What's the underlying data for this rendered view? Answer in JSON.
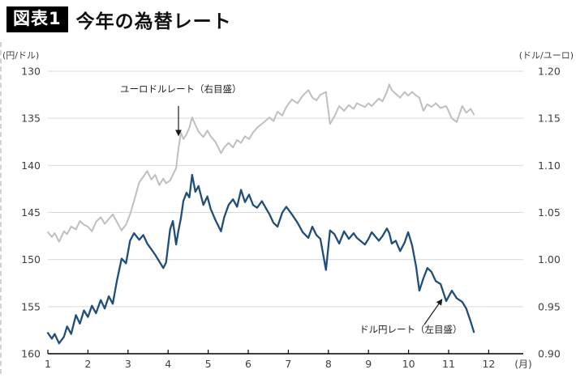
{
  "header": {
    "badge_label": "図表1",
    "title": "今年の為替レート"
  },
  "annotations": {
    "eurusd_label": "ユーロドルレート（右目盛）",
    "usdjpy_label": "ドル円レート（左目盛）"
  },
  "colors": {
    "usdjpy_line": "#1F4E79",
    "eurusd_line": "#BFBFBF",
    "grid": "#D9D9D9",
    "axis": "#000000",
    "label_text": "#404040"
  },
  "chart_data": {
    "type": "line",
    "title": "今年の為替レート",
    "x_axis": {
      "ticks": [
        "1",
        "2",
        "3",
        "4",
        "5",
        "6",
        "7",
        "8",
        "9",
        "10",
        "11",
        "12"
      ],
      "unit": "(月)",
      "range": [
        1,
        12.9
      ]
    },
    "left_axis": {
      "unit": "(円/ドル)",
      "ticks": [
        "130",
        "135",
        "140",
        "145",
        "150",
        "155",
        "160"
      ],
      "min": 130,
      "max": 160,
      "inverted": true
    },
    "right_axis": {
      "unit": "(ドル/ユーロ)",
      "ticks": [
        "1.20",
        "1.15",
        "1.10",
        "1.05",
        "1.00",
        "0.95",
        "0.90"
      ],
      "min": 0.9,
      "max": 1.2
    },
    "grid": "horizontal-only",
    "x": [
      1.0,
      1.1,
      1.17,
      1.28,
      1.4,
      1.48,
      1.58,
      1.7,
      1.8,
      1.9,
      2.0,
      2.1,
      2.2,
      2.32,
      2.42,
      2.52,
      2.62,
      2.72,
      2.84,
      2.95,
      3.05,
      3.15,
      3.28,
      3.38,
      3.48,
      3.58,
      3.68,
      3.78,
      3.88,
      3.95,
      4.05,
      4.12,
      4.2,
      4.26,
      4.32,
      4.38,
      4.46,
      4.53,
      4.6,
      4.68,
      4.76,
      4.88,
      4.98,
      5.06,
      5.18,
      5.32,
      5.4,
      5.51,
      5.62,
      5.72,
      5.82,
      5.92,
      6.02,
      6.12,
      6.22,
      6.34,
      6.53,
      6.63,
      6.73,
      6.85,
      6.95,
      7.09,
      7.23,
      7.36,
      7.5,
      7.6,
      7.7,
      7.8,
      7.94,
      8.04,
      8.15,
      8.27,
      8.39,
      8.51,
      8.63,
      8.71,
      8.91,
      9.0,
      9.08,
      9.26,
      9.35,
      9.46,
      9.52,
      9.58,
      9.68,
      9.79,
      9.9,
      9.99,
      10.09,
      10.19,
      10.27,
      10.37,
      10.47,
      10.57,
      10.68,
      10.8,
      10.94,
      11.08,
      11.2,
      11.34,
      11.44,
      11.55,
      11.63
    ],
    "series": [
      {
        "name": "ドル円レート",
        "axis": "left",
        "color": "#1F4E79",
        "values": [
          157.8,
          158.4,
          157.9,
          158.9,
          158.2,
          157.1,
          157.9,
          155.9,
          156.8,
          155.4,
          156.1,
          154.9,
          155.7,
          154.3,
          155.2,
          153.9,
          154.7,
          152.3,
          149.9,
          150.4,
          148.0,
          147.2,
          147.9,
          147.4,
          148.3,
          148.9,
          149.5,
          150.2,
          150.9,
          150.3,
          146.8,
          145.9,
          148.4,
          146.9,
          145.6,
          143.8,
          142.9,
          143.4,
          141.0,
          142.8,
          142.2,
          144.2,
          143.3,
          144.6,
          145.8,
          147.0,
          145.5,
          144.2,
          143.6,
          144.4,
          142.6,
          143.9,
          143.1,
          144.2,
          144.5,
          143.8,
          145.2,
          146.1,
          146.5,
          145.0,
          144.4,
          145.2,
          146.1,
          147.1,
          147.7,
          146.5,
          147.4,
          147.8,
          151.1,
          146.9,
          147.3,
          148.3,
          147.0,
          147.8,
          147.2,
          147.7,
          148.4,
          147.8,
          147.1,
          148.0,
          147.5,
          146.7,
          147.2,
          148.3,
          148.0,
          149.1,
          148.2,
          147.1,
          148.5,
          150.8,
          153.3,
          152.0,
          150.9,
          151.3,
          152.3,
          152.6,
          154.4,
          153.3,
          154.1,
          154.5,
          155.2,
          156.6,
          157.7
        ]
      },
      {
        "name": "ユーロドルレート",
        "axis": "right",
        "color": "#BFBFBF",
        "values": [
          1.029,
          1.024,
          1.028,
          1.019,
          1.03,
          1.027,
          1.035,
          1.032,
          1.041,
          1.037,
          1.035,
          1.03,
          1.04,
          1.045,
          1.038,
          1.043,
          1.048,
          1.04,
          1.031,
          1.037,
          1.048,
          1.062,
          1.082,
          1.088,
          1.094,
          1.085,
          1.09,
          1.079,
          1.086,
          1.081,
          1.084,
          1.09,
          1.097,
          1.118,
          1.135,
          1.128,
          1.133,
          1.14,
          1.151,
          1.143,
          1.136,
          1.13,
          1.137,
          1.131,
          1.125,
          1.113,
          1.119,
          1.124,
          1.119,
          1.127,
          1.124,
          1.131,
          1.128,
          1.135,
          1.14,
          1.144,
          1.151,
          1.147,
          1.157,
          1.153,
          1.162,
          1.17,
          1.166,
          1.174,
          1.18,
          1.172,
          1.169,
          1.175,
          1.178,
          1.144,
          1.152,
          1.163,
          1.158,
          1.164,
          1.16,
          1.166,
          1.162,
          1.166,
          1.163,
          1.171,
          1.168,
          1.178,
          1.186,
          1.18,
          1.176,
          1.172,
          1.178,
          1.174,
          1.178,
          1.174,
          1.172,
          1.158,
          1.165,
          1.162,
          1.166,
          1.161,
          1.163,
          1.15,
          1.146,
          1.163,
          1.156,
          1.16,
          1.154
        ]
      }
    ]
  }
}
